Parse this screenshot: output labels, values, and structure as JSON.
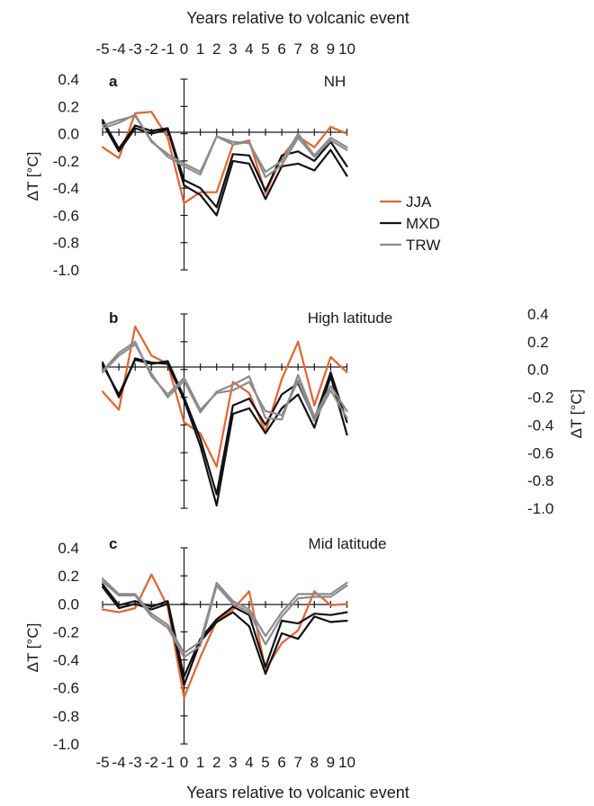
{
  "chart_data": [
    {
      "type": "line",
      "panel": "a",
      "title": "NH",
      "ylabel": "ΔT [°C]",
      "y_axis_side": "left",
      "x": [
        -5,
        -4,
        -3,
        -2,
        -1,
        0,
        1,
        2,
        3,
        4,
        5,
        6,
        7,
        8,
        9,
        10
      ],
      "ylim": [
        -1.0,
        0.4
      ],
      "yticks": [
        "0.4",
        "0.2",
        "0.0",
        "-0.2",
        "-0.4",
        "-0.6",
        "-0.8",
        "-1.0"
      ],
      "legend": {
        "position": "right",
        "entries": [
          "JJA",
          "MXD",
          "TRW"
        ]
      },
      "series": [
        {
          "name": "JJA",
          "color": "#e8622f",
          "values": [
            -0.1,
            -0.18,
            0.15,
            0.16,
            -0.03,
            -0.51,
            -0.43,
            -0.43,
            -0.08,
            -0.05,
            -0.44,
            -0.17,
            -0.02,
            -0.1,
            0.05,
            0.0
          ]
        },
        {
          "name": "MXD",
          "color": "#111111",
          "values": [
            0.08,
            -0.13,
            0.04,
            0.0,
            0.03,
            -0.38,
            -0.45,
            -0.6,
            -0.2,
            -0.22,
            -0.48,
            -0.24,
            -0.22,
            -0.27,
            -0.12,
            -0.31
          ]
        },
        {
          "name": "MXD",
          "color": "#111111",
          "values": [
            0.1,
            -0.11,
            0.06,
            0.02,
            0.04,
            -0.34,
            -0.4,
            -0.54,
            -0.15,
            -0.16,
            -0.42,
            -0.16,
            -0.13,
            -0.2,
            -0.06,
            -0.24
          ]
        },
        {
          "name": "TRW",
          "color": "#8c8c8c",
          "values": [
            0.06,
            0.1,
            0.13,
            -0.05,
            -0.17,
            -0.24,
            -0.3,
            -0.02,
            -0.08,
            -0.06,
            -0.32,
            -0.23,
            -0.03,
            -0.17,
            -0.05,
            -0.12
          ]
        },
        {
          "name": "TRW",
          "color": "#8c8c8c",
          "values": [
            0.04,
            0.08,
            0.14,
            -0.06,
            -0.15,
            -0.22,
            -0.28,
            -0.02,
            -0.06,
            -0.07,
            -0.28,
            -0.2,
            0.0,
            -0.16,
            -0.03,
            -0.1
          ]
        }
      ]
    },
    {
      "type": "line",
      "panel": "b",
      "title": "High latitude",
      "ylabel": "ΔT [°C]",
      "y_axis_side": "right",
      "x": [
        -5,
        -4,
        -3,
        -2,
        -1,
        0,
        1,
        2,
        3,
        4,
        5,
        6,
        7,
        8,
        9,
        10
      ],
      "ylim": [
        -1.0,
        0.4
      ],
      "yticks": [
        "0.4",
        "0.2",
        "0.0",
        "-0.2",
        "-0.4",
        "-0.6",
        "-0.8",
        "-1.0"
      ],
      "series": [
        {
          "name": "JJA",
          "color": "#e8622f",
          "values": [
            -0.16,
            -0.29,
            0.31,
            0.1,
            0.04,
            -0.38,
            -0.46,
            -0.7,
            -0.09,
            -0.17,
            -0.45,
            -0.07,
            0.2,
            -0.26,
            0.09,
            -0.02
          ]
        },
        {
          "name": "MXD",
          "color": "#111111",
          "values": [
            0.05,
            -0.2,
            0.08,
            0.05,
            0.04,
            -0.22,
            -0.55,
            -0.98,
            -0.32,
            -0.28,
            -0.46,
            -0.28,
            -0.18,
            -0.42,
            -0.05,
            -0.47
          ]
        },
        {
          "name": "MXD",
          "color": "#111111",
          "values": [
            0.03,
            -0.18,
            0.07,
            0.04,
            0.06,
            -0.2,
            -0.5,
            -0.9,
            -0.26,
            -0.21,
            -0.4,
            -0.18,
            -0.1,
            -0.36,
            -0.02,
            -0.38
          ]
        },
        {
          "name": "TRW",
          "color": "#8c8c8c",
          "values": [
            -0.02,
            0.1,
            0.18,
            -0.03,
            -0.2,
            -0.08,
            -0.31,
            -0.16,
            -0.11,
            -0.05,
            -0.35,
            -0.36,
            -0.04,
            -0.34,
            -0.12,
            -0.3
          ]
        },
        {
          "name": "TRW",
          "color": "#8c8c8c",
          "values": [
            -0.01,
            0.12,
            0.2,
            -0.05,
            -0.18,
            -0.06,
            -0.29,
            -0.17,
            -0.15,
            -0.09,
            -0.3,
            -0.33,
            -0.08,
            -0.37,
            -0.15,
            -0.35
          ]
        }
      ]
    },
    {
      "type": "line",
      "panel": "c",
      "title": "Mid latitude",
      "ylabel": "ΔT [°C]",
      "y_axis_side": "left",
      "xlabel": "Years relative to volcanic event",
      "x": [
        -5,
        -4,
        -3,
        -2,
        -1,
        0,
        1,
        2,
        3,
        4,
        5,
        6,
        7,
        8,
        9,
        10
      ],
      "ylim": [
        -1.0,
        0.4
      ],
      "yticks": [
        "0.4",
        "0.2",
        "0.0",
        "-0.2",
        "-0.4",
        "-0.6",
        "-0.8",
        "-1.0"
      ],
      "series": [
        {
          "name": "JJA",
          "color": "#e8622f",
          "values": [
            -0.04,
            -0.06,
            -0.03,
            0.21,
            -0.02,
            -0.67,
            -0.38,
            -0.12,
            -0.04,
            0.09,
            -0.47,
            -0.28,
            -0.19,
            0.09,
            -0.01,
            0.0
          ]
        },
        {
          "name": "MXD",
          "color": "#111111",
          "values": [
            0.12,
            -0.03,
            0.0,
            -0.04,
            0.0,
            -0.58,
            -0.27,
            -0.13,
            -0.06,
            -0.16,
            -0.5,
            -0.21,
            -0.25,
            -0.09,
            -0.13,
            -0.12
          ]
        },
        {
          "name": "MXD",
          "color": "#111111",
          "values": [
            0.14,
            -0.01,
            0.02,
            -0.02,
            0.02,
            -0.52,
            -0.25,
            -0.11,
            -0.02,
            -0.08,
            -0.45,
            -0.12,
            -0.14,
            -0.07,
            -0.08,
            -0.06
          ]
        },
        {
          "name": "TRW",
          "color": "#8c8c8c",
          "values": [
            0.18,
            0.07,
            0.07,
            -0.07,
            -0.15,
            -0.35,
            -0.27,
            0.15,
            0.02,
            -0.04,
            -0.23,
            -0.06,
            0.07,
            0.07,
            0.07,
            0.15
          ]
        },
        {
          "name": "TRW",
          "color": "#8c8c8c",
          "values": [
            0.16,
            0.06,
            0.06,
            -0.09,
            -0.17,
            -0.38,
            -0.3,
            0.13,
            0.0,
            -0.06,
            -0.29,
            -0.09,
            0.04,
            0.05,
            0.05,
            0.13
          ]
        }
      ]
    }
  ],
  "top_axis": {
    "xlabel": "Years relative to volcanic event",
    "ticks": [
      "-5",
      "-4",
      "-3",
      "-2",
      "-1",
      "0",
      "1",
      "2",
      "3",
      "4",
      "5",
      "6",
      "7",
      "8",
      "9",
      "10"
    ]
  },
  "bottom_axis": {
    "xlabel": "Years relative to volcanic event",
    "ticks": [
      "-5",
      "-4",
      "-3",
      "-2",
      "-1",
      "0",
      "1",
      "2",
      "3",
      "4",
      "5",
      "6",
      "7",
      "8",
      "9",
      "10"
    ]
  }
}
